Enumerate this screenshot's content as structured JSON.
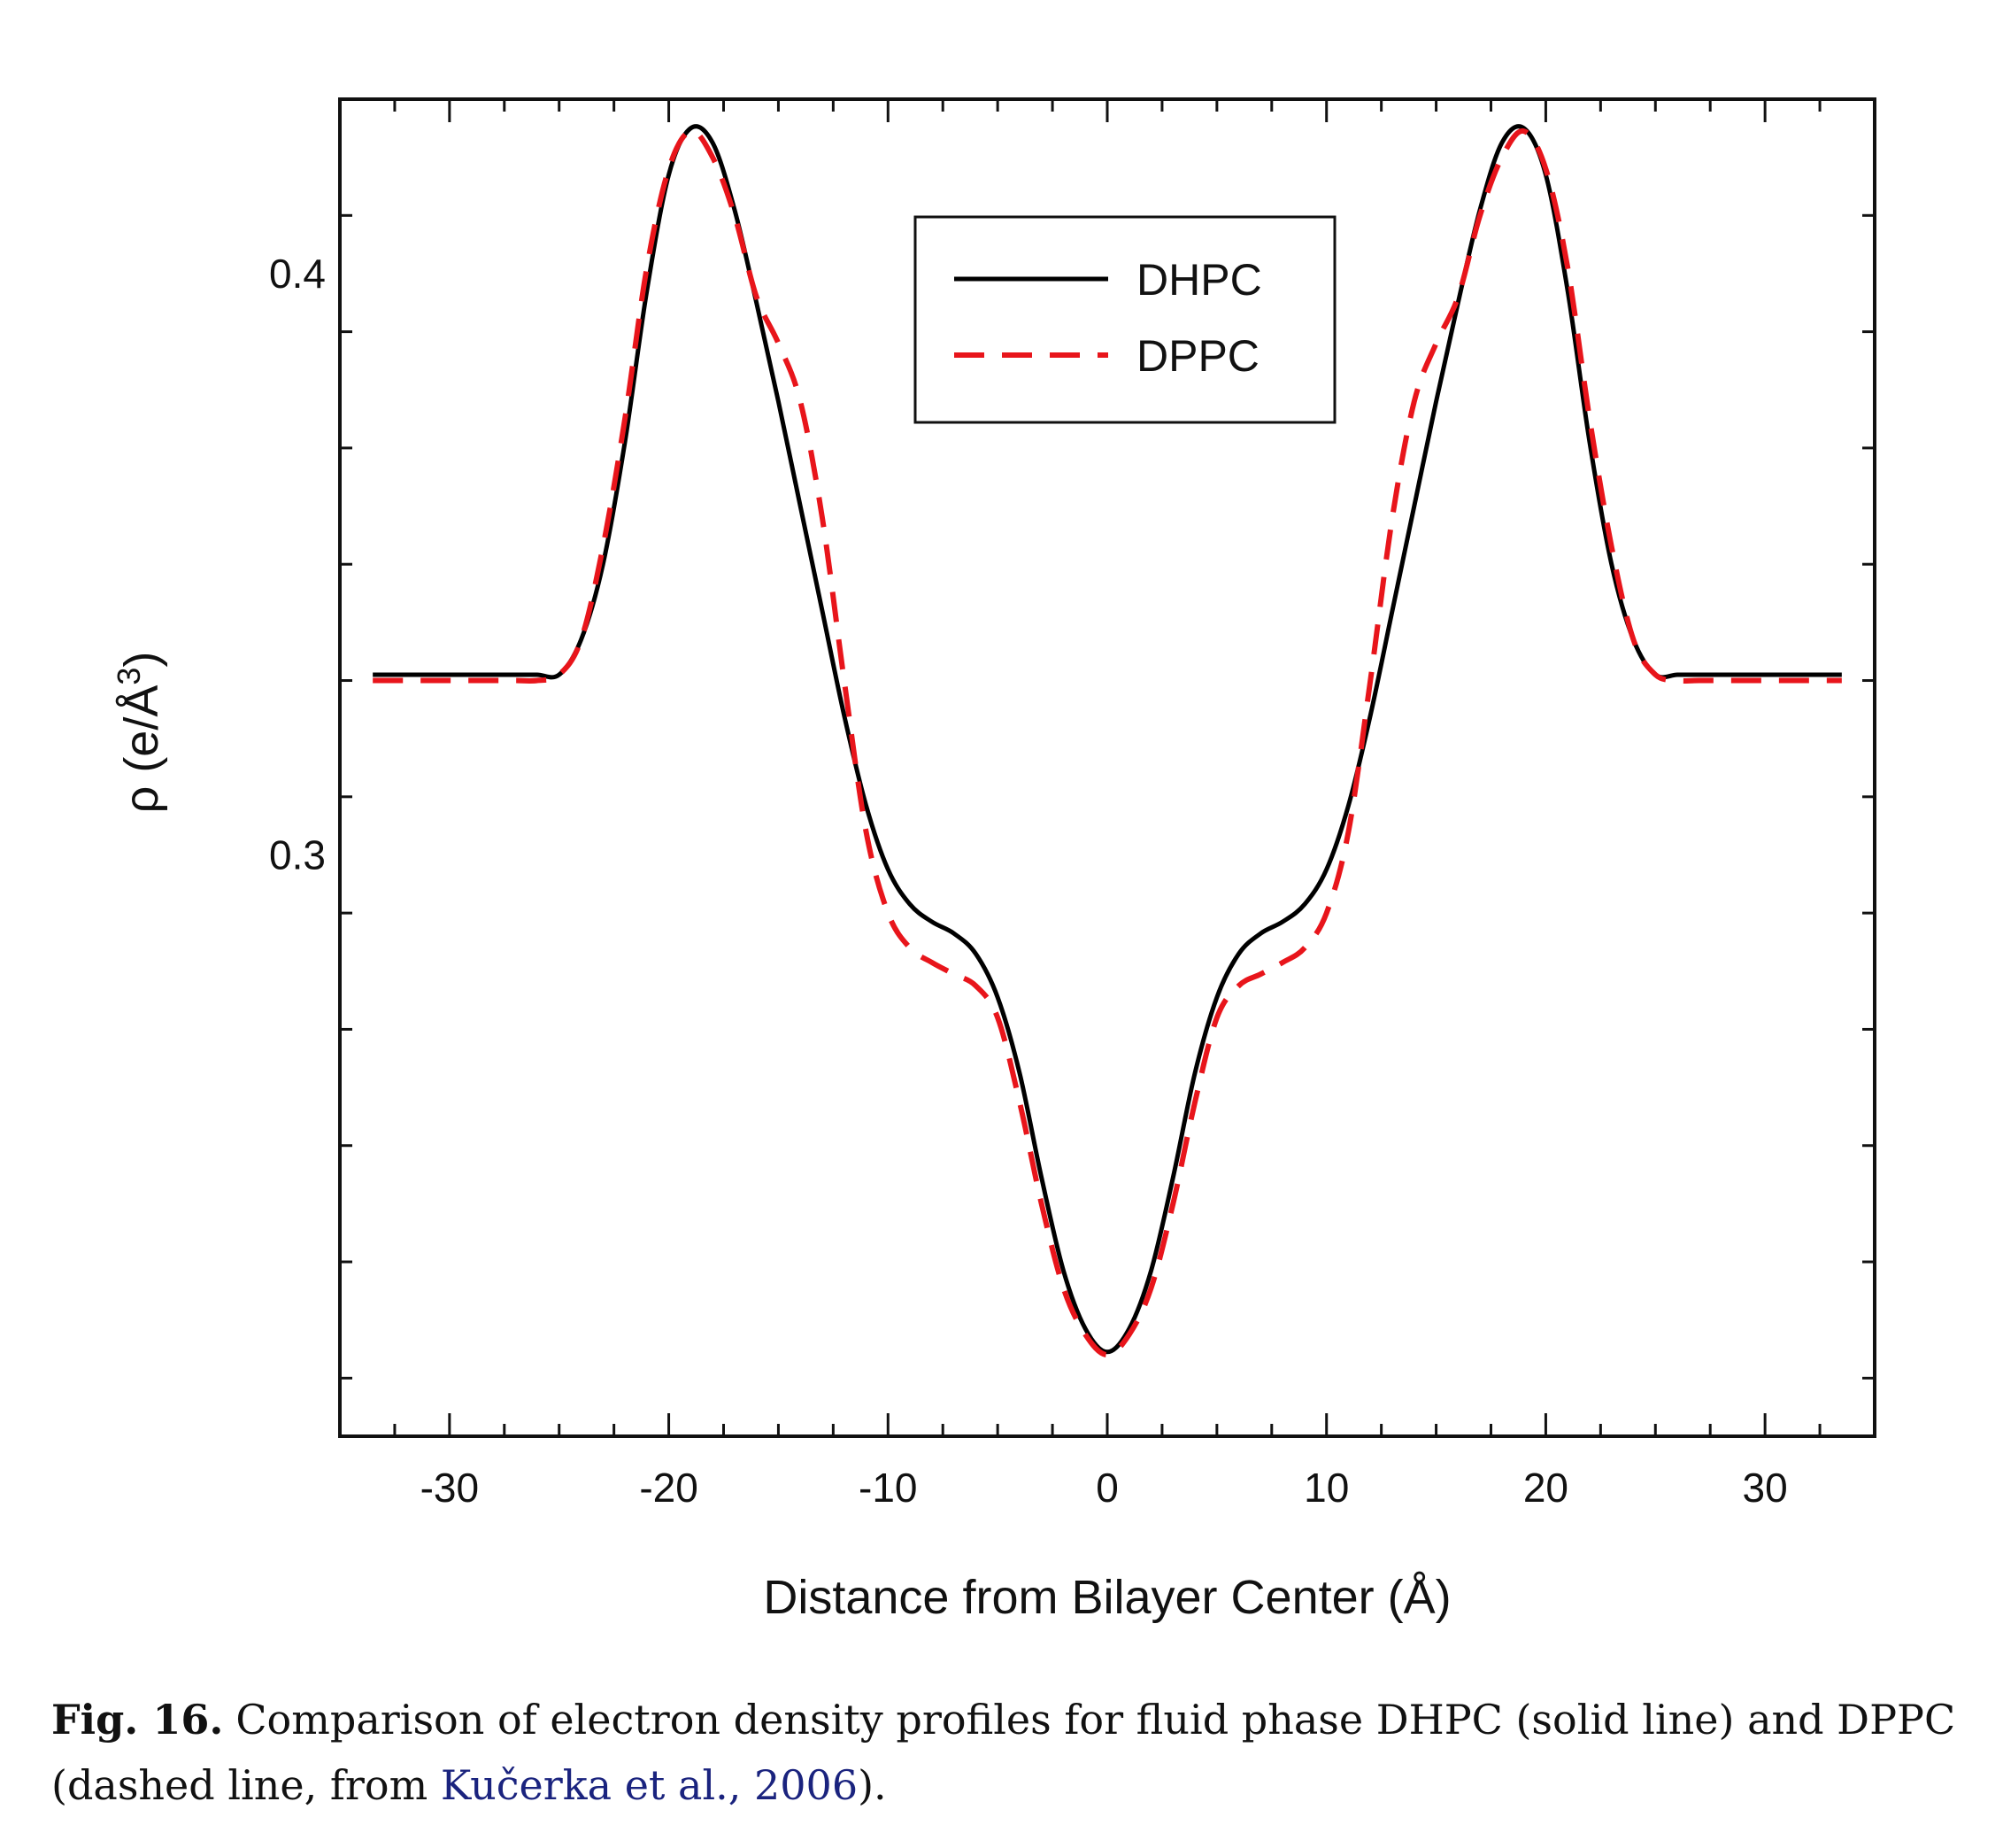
{
  "chart_data": {
    "type": "line",
    "title": "",
    "xlabel": "Distance from Bilayer Center (Å)",
    "ylabel_base": "ρ (e/Å",
    "ylabel_sup": "3",
    "ylabel_close": ")",
    "xlim": [
      -35,
      35
    ],
    "ylim": [
      0.2,
      0.43
    ],
    "x_ticks": [
      -30,
      -20,
      -10,
      0,
      10,
      20,
      30
    ],
    "x_tick_labels": [
      "-30",
      "-20",
      "-10",
      "0",
      "10",
      "20",
      "30"
    ],
    "y_ticks": [
      0.3,
      0.4
    ],
    "y_tick_labels": [
      "0.3",
      "0.4"
    ],
    "grid": false,
    "legend_position": "top-center",
    "series": [
      {
        "name": "DHPC",
        "style": "solid",
        "color": "#000000",
        "x": [
          0,
          1,
          2,
          3,
          4,
          5,
          6,
          7,
          8,
          9,
          10,
          11,
          12,
          13,
          14,
          15,
          16,
          17,
          18,
          19,
          20,
          21,
          22,
          23,
          24,
          25,
          26,
          27,
          28,
          29,
          30,
          31,
          32,
          33.5
        ],
        "y": [
          0.2145,
          0.2185,
          0.2285,
          0.2445,
          0.2625,
          0.2755,
          0.283,
          0.2865,
          0.2885,
          0.2915,
          0.2975,
          0.3085,
          0.324,
          0.342,
          0.36,
          0.378,
          0.395,
          0.411,
          0.4225,
          0.425,
          0.417,
          0.397,
          0.371,
          0.35,
          0.337,
          0.331,
          0.331,
          0.331,
          0.331,
          0.331,
          0.331,
          0.331,
          0.331,
          0.331
        ]
      },
      {
        "name": "DPPC",
        "style": "dashed",
        "color": "#e8151b",
        "x": [
          0,
          1,
          2,
          3,
          4,
          5,
          6,
          7,
          8,
          9,
          10,
          11,
          12,
          13,
          14,
          15,
          16,
          17,
          18,
          19,
          20,
          21,
          22,
          23,
          24,
          25,
          26,
          27,
          28,
          29,
          30,
          31,
          32,
          33.5
        ],
        "y": [
          0.214,
          0.2175,
          0.2255,
          0.24,
          0.2575,
          0.272,
          0.2775,
          0.2795,
          0.2815,
          0.284,
          0.29,
          0.304,
          0.33,
          0.358,
          0.378,
          0.388,
          0.396,
          0.41,
          0.42,
          0.4245,
          0.418,
          0.401,
          0.375,
          0.353,
          0.337,
          0.331,
          0.33,
          0.33,
          0.33,
          0.33,
          0.33,
          0.33,
          0.33,
          0.33
        ]
      }
    ],
    "symmetric_about_zero": true
  },
  "caption": {
    "label": "Fig. 16.",
    "text_before_ref": "Comparison of electron density profiles for fluid phase DHPC (solid line) and DPPC (dashed line, from ",
    "ref_text": "Kučerka et al., 2006",
    "text_after_ref": ")."
  }
}
